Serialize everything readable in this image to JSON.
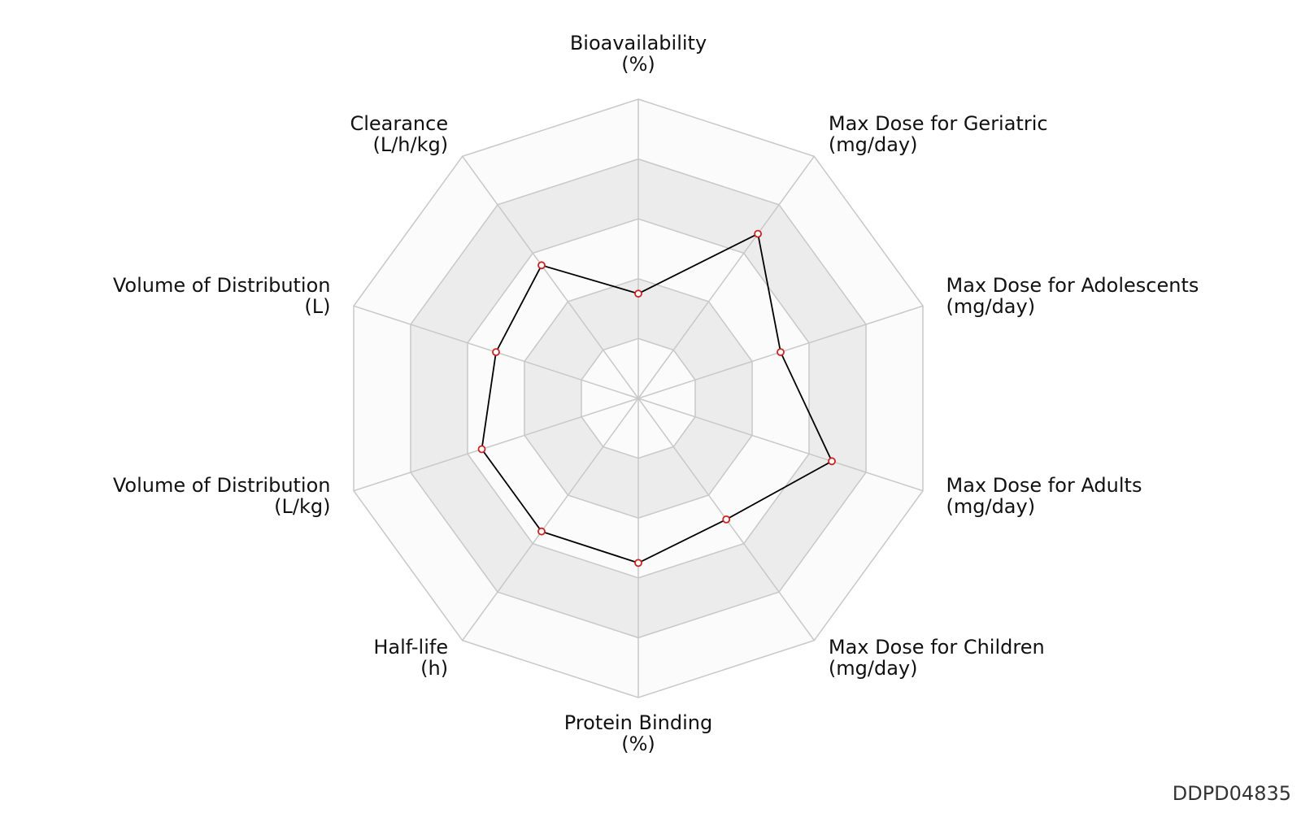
{
  "chart_data": {
    "type": "radar",
    "axes": [
      {
        "name": "Bioavailability",
        "unit": "(%)"
      },
      {
        "name": "Max Dose for Geriatric",
        "unit": "(mg/day)"
      },
      {
        "name": "Max Dose for Adolescents",
        "unit": "(mg/day)"
      },
      {
        "name": "Max Dose for Adults",
        "unit": "(mg/day)"
      },
      {
        "name": "Max Dose for Children",
        "unit": "(mg/day)"
      },
      {
        "name": "Protein Binding",
        "unit": "(%)"
      },
      {
        "name": "Half-life",
        "unit": "(h)"
      },
      {
        "name": "Volume of Distribution",
        "unit": "(L/kg)"
      },
      {
        "name": "Volume of Distribution",
        "unit": "(L)"
      },
      {
        "name": "Clearance",
        "unit": "(L/h/kg)"
      }
    ],
    "values": [
      0.35,
      0.68,
      0.5,
      0.68,
      0.5,
      0.55,
      0.55,
      0.55,
      0.5,
      0.55
    ],
    "range": [
      0,
      1
    ],
    "rings": 5,
    "grid": true,
    "colors": {
      "line": "#000000",
      "marker_stroke": "#cc2222",
      "marker_fill": "#ffffff",
      "band_light": "#fbfbfb",
      "band_dark": "#ececec",
      "grid": "#c8c8c8"
    }
  },
  "watermark": "DDPD04835"
}
